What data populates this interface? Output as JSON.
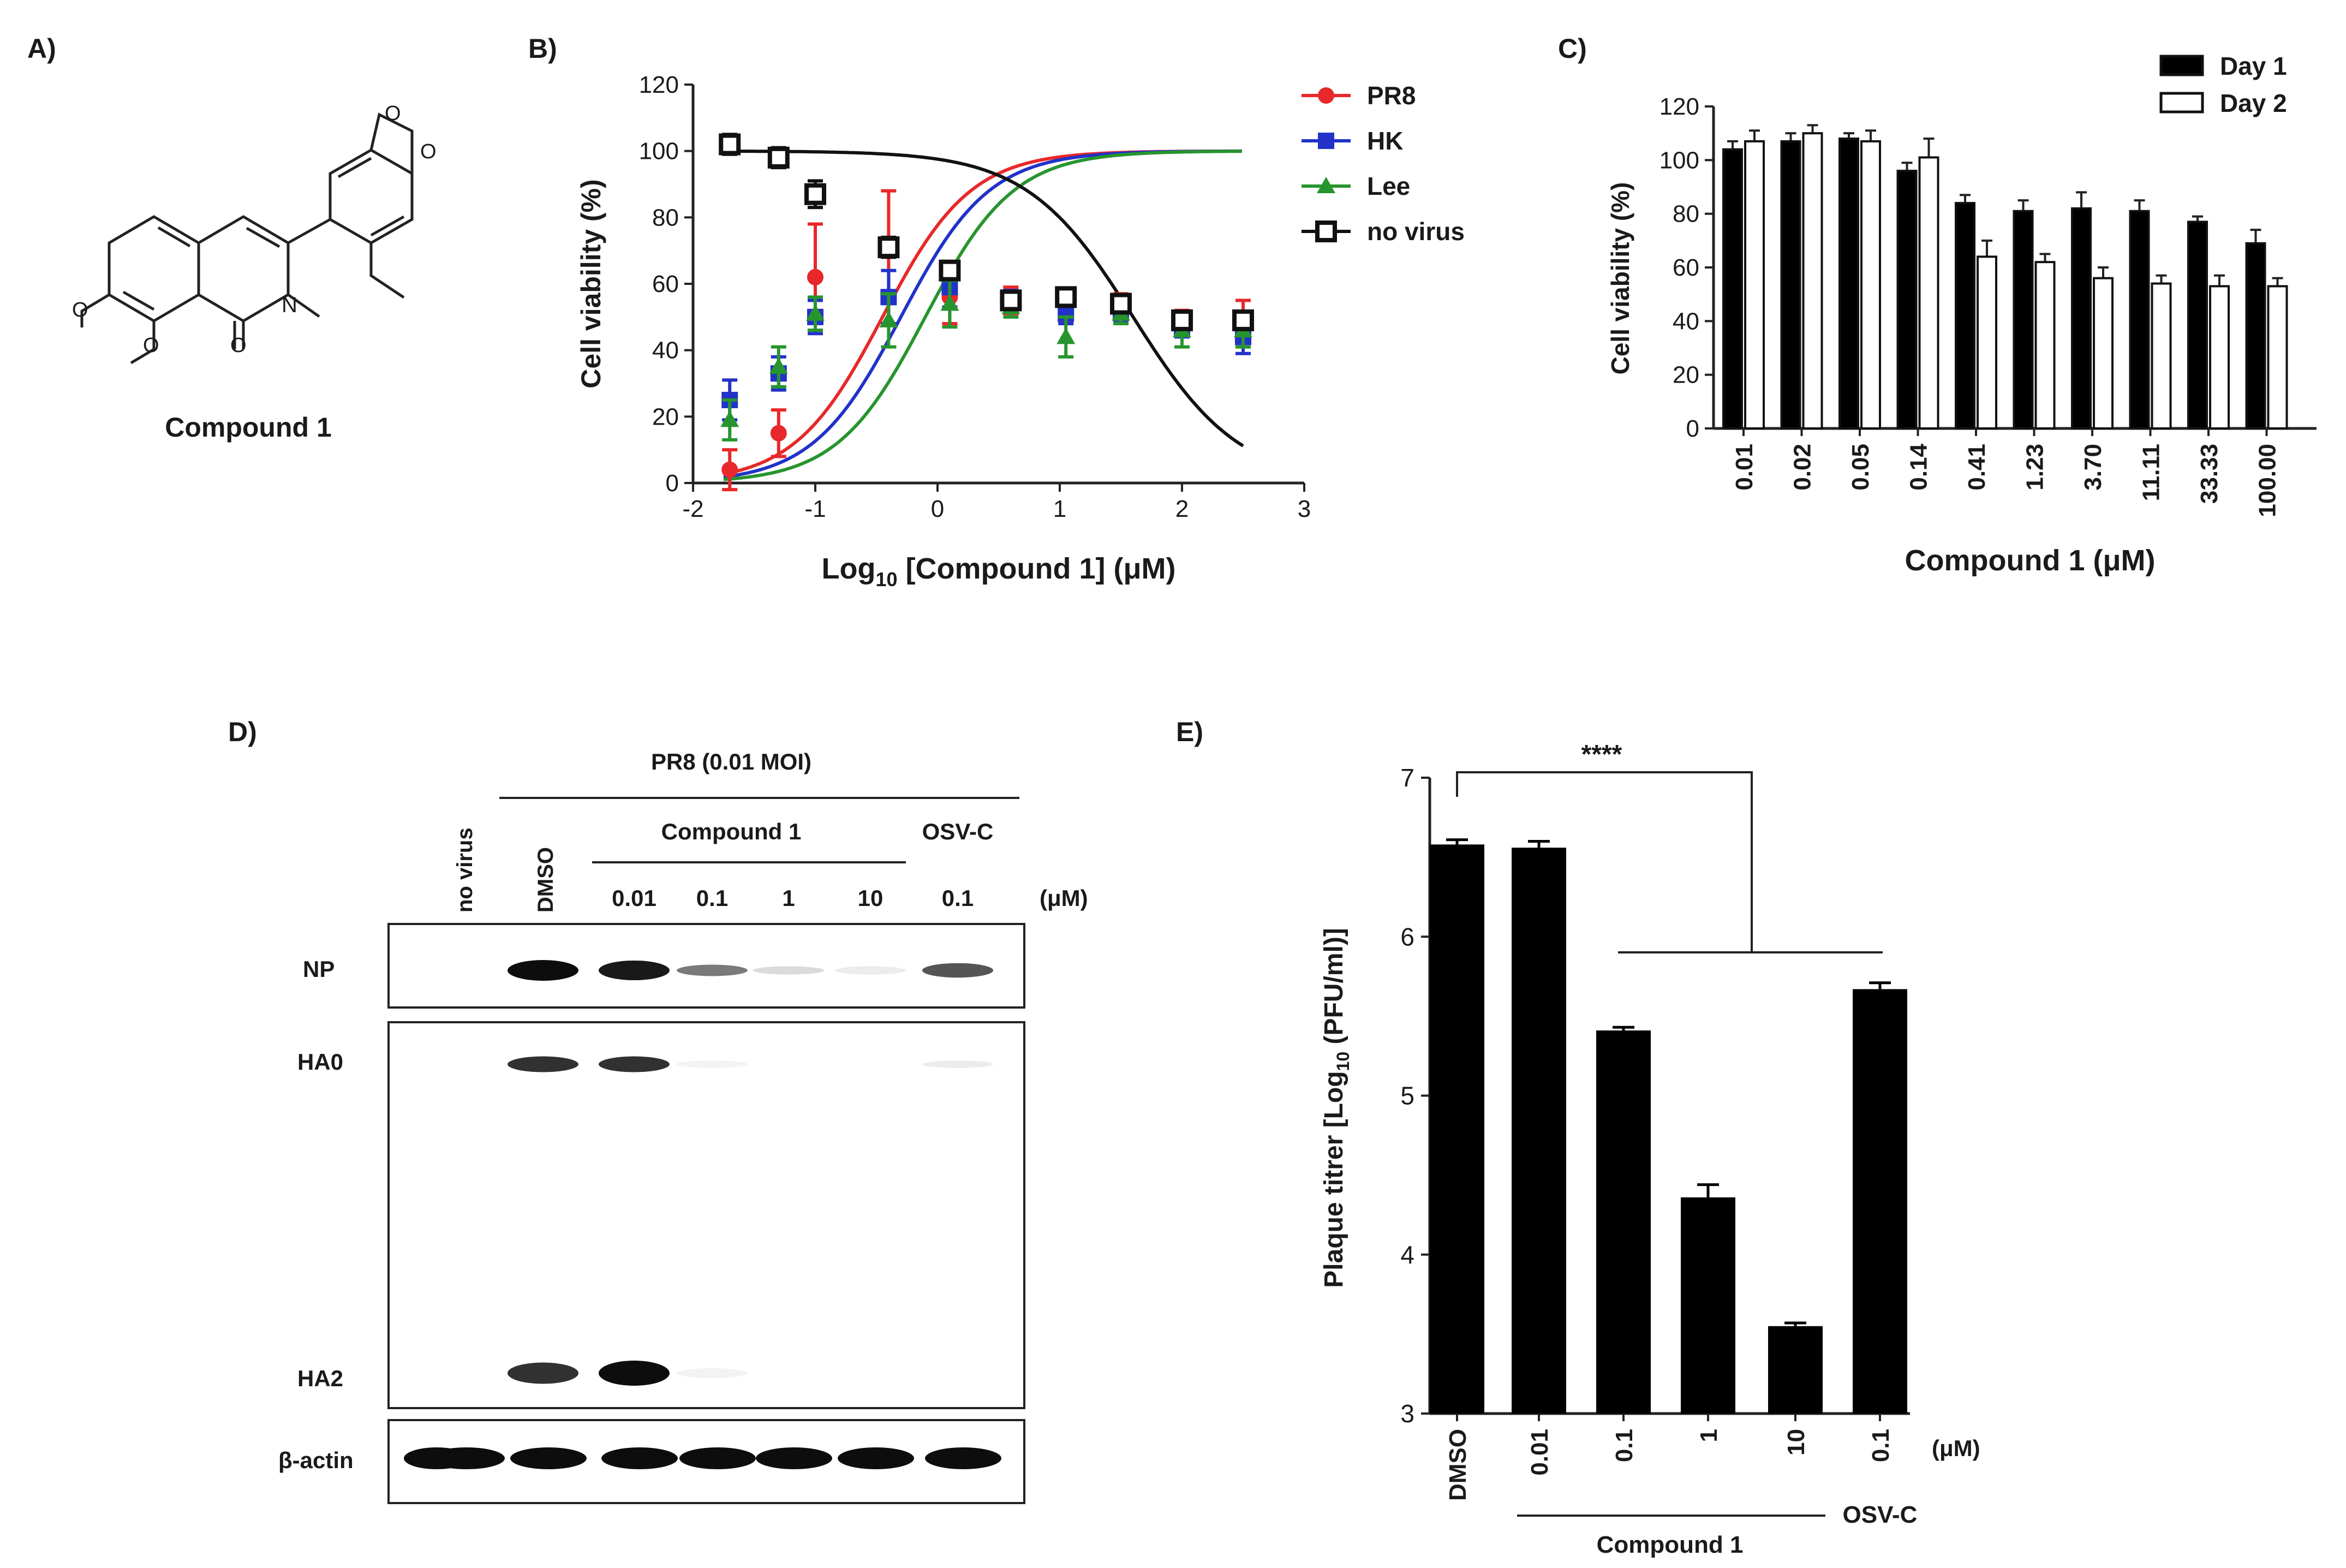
{
  "panels": {
    "a": "A)",
    "b": "B)",
    "c": "C)",
    "d": "D)",
    "e": "E)"
  },
  "structure": {
    "compound_label": "Compound 1",
    "atom_o": "O",
    "atom_n": "N"
  },
  "chart_data": [
    {
      "id": "B",
      "type": "scatter",
      "title": "",
      "xlabel_main": "Log",
      "xlabel_sub": "10",
      "xlabel_rest": " [Compound 1] (μM)",
      "ylabel": "Cell viability  (%)",
      "xlim": [
        -2,
        3
      ],
      "ylim": [
        0,
        120
      ],
      "xticks": [
        "-2",
        "-1",
        "0",
        "1",
        "2",
        "3"
      ],
      "yticks": [
        "0",
        "20",
        "40",
        "60",
        "80",
        "100",
        "120"
      ],
      "legend": [
        "PR8",
        "HK",
        "Lee",
        "no virus"
      ],
      "series": [
        {
          "name": "PR8",
          "color": "#e8282a",
          "marker": "circle",
          "x": [
            -1.7,
            -1.3,
            -1.0,
            -0.4,
            0.1,
            0.6,
            1.05,
            1.5,
            2.0,
            2.5
          ],
          "y": [
            4,
            15,
            62,
            72,
            56,
            55,
            53,
            54,
            49,
            48
          ],
          "err": [
            6,
            7,
            16,
            16,
            8,
            4,
            4,
            3,
            3,
            7
          ],
          "fit": {
            "bottom": 0,
            "top": 100,
            "logec50": -0.45,
            "hill": 1.2
          }
        },
        {
          "name": "HK",
          "color": "#2232c8",
          "marker": "square",
          "x": [
            -1.7,
            -1.3,
            -1.0,
            -0.4,
            0.1,
            0.6,
            1.05,
            1.5,
            2.0,
            2.5
          ],
          "y": [
            25,
            33,
            50,
            56,
            59,
            55,
            51,
            52,
            47,
            44
          ],
          "err": [
            6,
            5,
            5,
            8,
            6,
            3,
            3,
            3,
            3,
            5
          ],
          "fit": {
            "bottom": 0,
            "top": 100,
            "logec50": -0.3,
            "hill": 1.2
          }
        },
        {
          "name": "Lee",
          "color": "#27952e",
          "marker": "triangle",
          "x": [
            -1.7,
            -1.3,
            -1.0,
            -0.4,
            0.1,
            0.6,
            1.05,
            1.5,
            2.0,
            2.5
          ],
          "y": [
            19,
            35,
            51,
            49,
            54,
            53,
            44,
            51,
            46,
            46
          ],
          "err": [
            6,
            6,
            5,
            8,
            7,
            3,
            6,
            3,
            5,
            5
          ],
          "fit": {
            "bottom": 0,
            "top": 100,
            "logec50": -0.1,
            "hill": 1.2
          }
        },
        {
          "name": "no virus",
          "color": "#111111",
          "marker": "open-square",
          "x": [
            -1.7,
            -1.3,
            -1.0,
            -0.4,
            0.1,
            0.6,
            1.05,
            1.5,
            2.0,
            2.5
          ],
          "y": [
            102,
            98,
            87,
            71,
            64,
            55,
            56,
            54,
            49,
            49
          ],
          "err": [
            3,
            3,
            4,
            3,
            2,
            2,
            2,
            2,
            2,
            2
          ],
          "fit": {
            "bottom": 0,
            "top": 100,
            "logec50": 1.6,
            "hill": -1.0
          }
        }
      ]
    },
    {
      "id": "C",
      "type": "bar",
      "title": "",
      "xlabel_main": "Compound 1 (μM)",
      "ylabel": "Cell viability  (%)",
      "ylim": [
        0,
        120
      ],
      "yticks": [
        "0",
        "20",
        "40",
        "60",
        "80",
        "100",
        "120"
      ],
      "categories": [
        "0.01",
        "0.02",
        "0.05",
        "0.14",
        "0.41",
        "1.23",
        "3.70",
        "11.11",
        "33.33",
        "100.00"
      ],
      "series": [
        {
          "name": "Day 1",
          "fill": "#000000",
          "values": [
            104,
            107,
            108,
            96,
            84,
            81,
            82,
            81,
            77,
            69
          ],
          "err": [
            3,
            3,
            2,
            3,
            3,
            4,
            6,
            4,
            2,
            5
          ]
        },
        {
          "name": "Day 2",
          "fill": "#ffffff",
          "values": [
            107,
            110,
            107,
            101,
            64,
            62,
            56,
            54,
            53,
            53
          ],
          "err": [
            4,
            3,
            4,
            7,
            6,
            3,
            4,
            3,
            4,
            3
          ]
        }
      ],
      "legend": [
        "Day 1",
        "Day 2"
      ]
    },
    {
      "id": "D",
      "type": "other",
      "title": "PR8 (0.01 MOI)",
      "lane_labels": [
        "no virus",
        "DMSO"
      ],
      "group_compound": "Compound 1",
      "group_osv": "OSV-C",
      "conc_labels": [
        "0.01",
        "0.1",
        "1",
        "10",
        "0.1"
      ],
      "unit": "(μM)",
      "blot_labels": [
        "NP",
        "HA0",
        "HA2",
        "β-actin"
      ],
      "intensities": {
        "NP": [
          0,
          1.0,
          0.95,
          0.55,
          0.15,
          0.08,
          0.7
        ],
        "HA0": [
          0,
          0.85,
          0.85,
          0.05,
          0,
          0,
          0.08
        ],
        "HA2": [
          0,
          0.85,
          1.0,
          0.05,
          0,
          0,
          0
        ],
        "beta_actin": [
          1,
          1,
          1,
          1,
          1,
          1,
          1
        ]
      }
    },
    {
      "id": "E",
      "type": "bar",
      "title": "",
      "ylabel_main": "Plaque titrer [Log",
      "ylabel_sub": "10",
      "ylabel_rest": " (PFU/ml)]",
      "ylim": [
        3,
        7
      ],
      "yticks": [
        "3",
        "4",
        "5",
        "6",
        "7"
      ],
      "categories": [
        "DMSO",
        "0.01",
        "0.1",
        "1",
        "10",
        "0.1"
      ],
      "values": [
        6.58,
        6.56,
        5.41,
        4.36,
        3.55,
        5.67
      ],
      "err": [
        0.03,
        0.04,
        0.02,
        0.08,
        0.02,
        0.04
      ],
      "unit": "(μM)",
      "group_compound": "Compound 1",
      "group_osv": "OSV-C",
      "significance": "****"
    }
  ]
}
